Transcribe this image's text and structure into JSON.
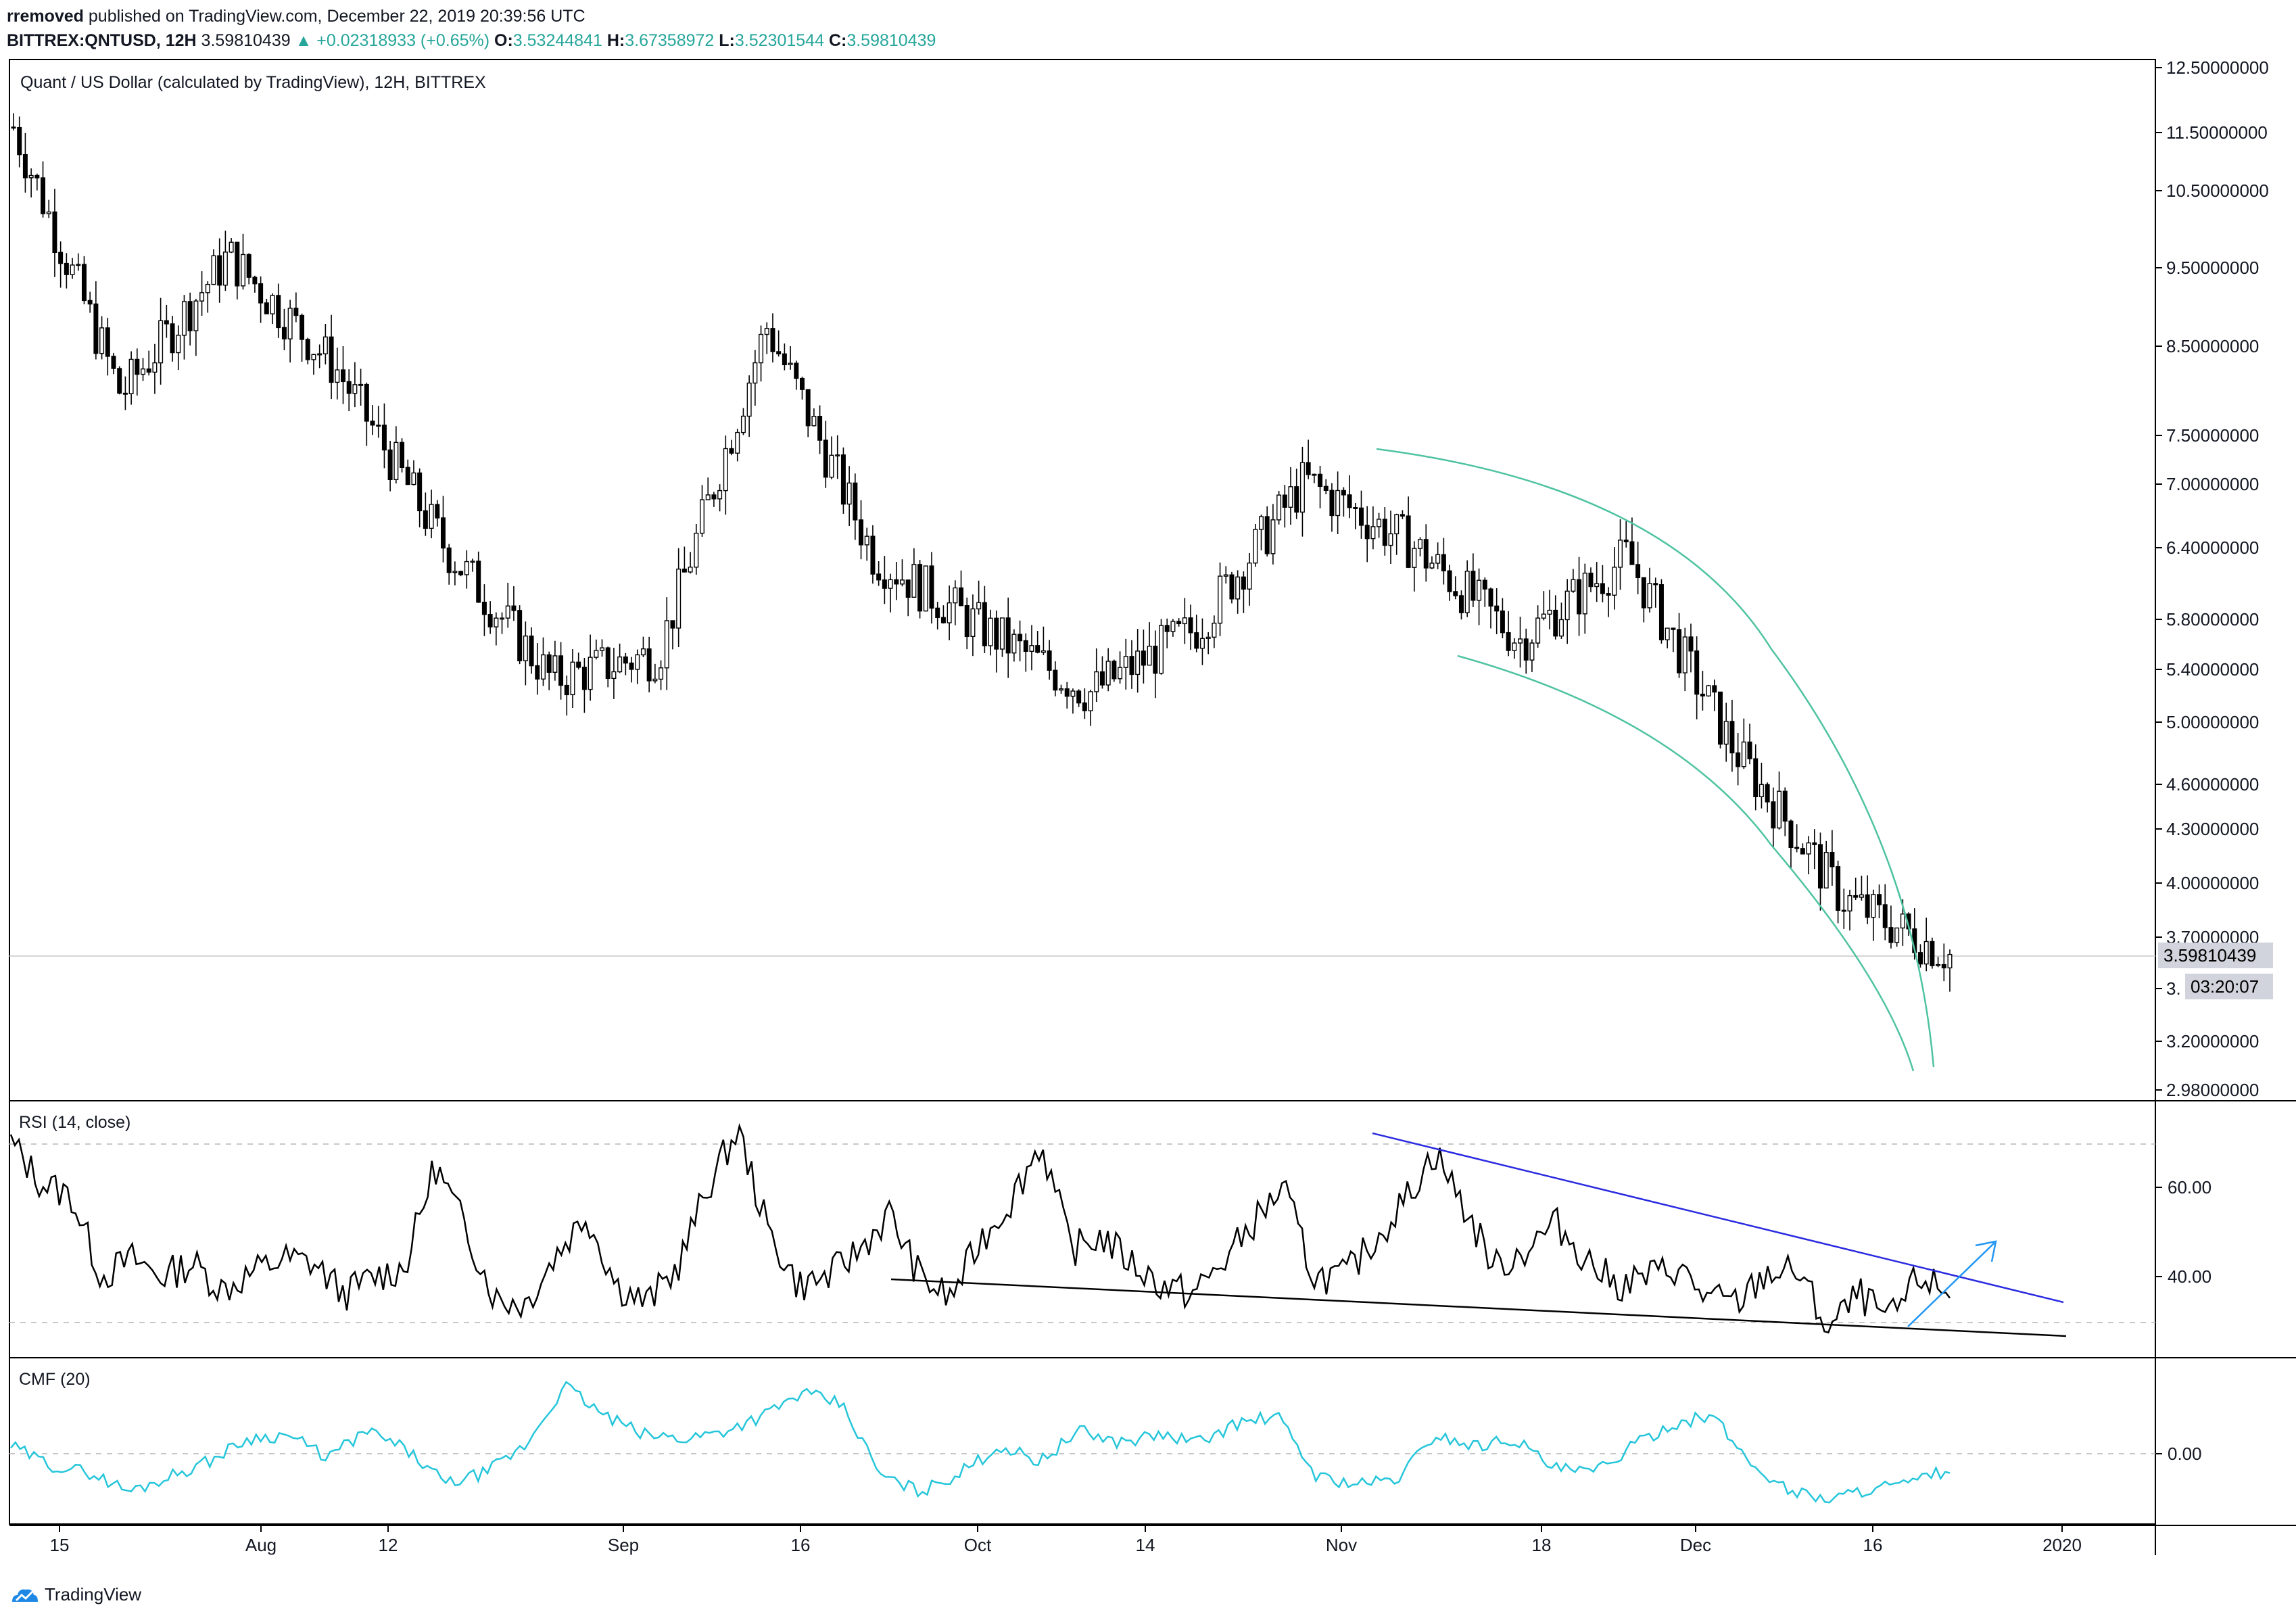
{
  "header": {
    "author": "rremoved",
    "published_text": "published on TradingView.com, December 22, 2019 20:39:56 UTC",
    "symbol": "BITTREX:QNTUSD, 12H",
    "last": "3.59810439",
    "change_arrow": "▲",
    "change": "+0.02318933 (+0.65%)",
    "o_label": "O:",
    "o_value": "3.53244841",
    "h_label": "H:",
    "h_value": "3.67358972",
    "l_label": "L:",
    "l_value": "3.52301544",
    "c_label": "C:",
    "c_value": "3.59810439"
  },
  "main_pane": {
    "legend": "Quant / US Dollar (calculated by TradingView), 12H, BITTREX",
    "price_ticks": [
      "12.50000000",
      "11.50000000",
      "10.50000000",
      "9.50000000",
      "8.50000000",
      "7.50000000",
      "7.00000000",
      "6.40000000",
      "5.80000000",
      "5.40000000",
      "5.00000000",
      "4.60000000",
      "4.30000000",
      "4.00000000",
      "3.70000000",
      "3.",
      "3.20000000",
      "2.98000000"
    ],
    "last_price_label": "3.59810439",
    "countdown_label": "03:20:07"
  },
  "rsi_pane": {
    "legend": "RSI (14, close)",
    "ticks": [
      "60.00",
      "40.00"
    ]
  },
  "cmf_pane": {
    "legend": "CMF (20)",
    "ticks": [
      "0.00"
    ]
  },
  "time_axis": {
    "labels": [
      "15",
      "Aug",
      "12",
      "Sep",
      "16",
      "Oct",
      "14",
      "Nov",
      "18",
      "Dec",
      "16",
      "2020"
    ]
  },
  "colors": {
    "up": "#26a69a",
    "candle": "#000000",
    "channel": "#4fc3a1",
    "rsi_line": "#000000",
    "rsi_trend_upper": "#2a2ae0",
    "rsi_trend_lower": "#000000",
    "rsi_arrow": "#2196f3",
    "cmf_line": "#26c6da",
    "label_bg": "#d1d4dc"
  },
  "footer": {
    "brand": "TradingView",
    "logo_icon": "tradingview-cloud-icon"
  },
  "chart_data": [
    {
      "type": "candlestick",
      "title": "Quant / US Dollar (calculated by TradingView), 12H, BITTREX",
      "x": [
        "15",
        "Aug",
        "12",
        "Sep",
        "16",
        "Oct",
        "14",
        "Nov",
        "18",
        "Dec",
        "16",
        "2020"
      ],
      "ylim": [
        2.98,
        12.5
      ],
      "y_scale": "log",
      "approx_closes": [
        {
          "x": "15",
          "y": 11.5
        },
        {
          "x": "Aug",
          "y": 7.9
        },
        {
          "x": "Aug",
          "y": 9.6
        },
        {
          "x": "12",
          "y": 8.2
        },
        {
          "x": "12",
          "y": 6.4
        },
        {
          "x": "Sep",
          "y": 5.3
        },
        {
          "x": "16",
          "y": 5.5
        },
        {
          "x": "16",
          "y": 8.7
        },
        {
          "x": "Oct",
          "y": 6.3
        },
        {
          "x": "14",
          "y": 5.7
        },
        {
          "x": "14",
          "y": 5.2
        },
        {
          "x": "Nov",
          "y": 5.7
        },
        {
          "x": "Nov",
          "y": 7.0
        },
        {
          "x": "18",
          "y": 6.4
        },
        {
          "x": "18",
          "y": 5.6
        },
        {
          "x": "Dec",
          "y": 6.3
        },
        {
          "x": "Dec",
          "y": 4.8
        },
        {
          "x": "16",
          "y": 3.9
        },
        {
          "x": "16",
          "y": 3.6
        }
      ],
      "last_close": 3.59810439,
      "annotations": [
        "descending curved channel from Nov to Dec 16"
      ]
    },
    {
      "type": "line",
      "title": "RSI (14, close)",
      "ylim": [
        22,
        78
      ],
      "reference_lines": [
        70,
        30
      ],
      "series": [
        {
          "name": "RSI (14, close)",
          "values": [
            70,
            61,
            58,
            40,
            44,
            40,
            43,
            37,
            41,
            44,
            43,
            36,
            40,
            42,
            65,
            51,
            35,
            34,
            45,
            54,
            38,
            34,
            42,
            60,
            73,
            50,
            38,
            40,
            46,
            54,
            40,
            35,
            48,
            57,
            70,
            46,
            49,
            43,
            38,
            36,
            43,
            52,
            60,
            40,
            40,
            48,
            57,
            68,
            55,
            42,
            46,
            52,
            44,
            38,
            40,
            42,
            35,
            34,
            41,
            41,
            28,
            36,
            30,
            40,
            36
          ]
        }
      ],
      "annotations": [
        "downward trend line across highs",
        "support line across lows",
        "up arrow at latest value"
      ]
    },
    {
      "type": "line",
      "title": "CMF (20)",
      "reference_lines": [
        0
      ],
      "series": [
        {
          "name": "CMF (20)",
          "values": [
            0.02,
            -0.03,
            -0.05,
            -0.1,
            -0.06,
            -0.02,
            0.04,
            0.05,
            -0.01,
            0.06,
            0.01,
            -0.08,
            -0.05,
            0.02,
            0.18,
            0.1,
            0.05,
            0.04,
            0.06,
            0.1,
            0.16,
            0.13,
            -0.06,
            -0.1,
            -0.05,
            0.02,
            -0.02,
            0.06,
            0.03,
            0.05,
            0.03,
            0.08,
            0.1,
            -0.06,
            -0.08,
            -0.07,
            0.05,
            0.02,
            0.04,
            -0.04,
            -0.05,
            0.02,
            0.08,
            0.1,
            -0.03,
            -0.1,
            -0.12,
            -0.09,
            -0.08,
            -0.04
          ]
        }
      ]
    }
  ]
}
